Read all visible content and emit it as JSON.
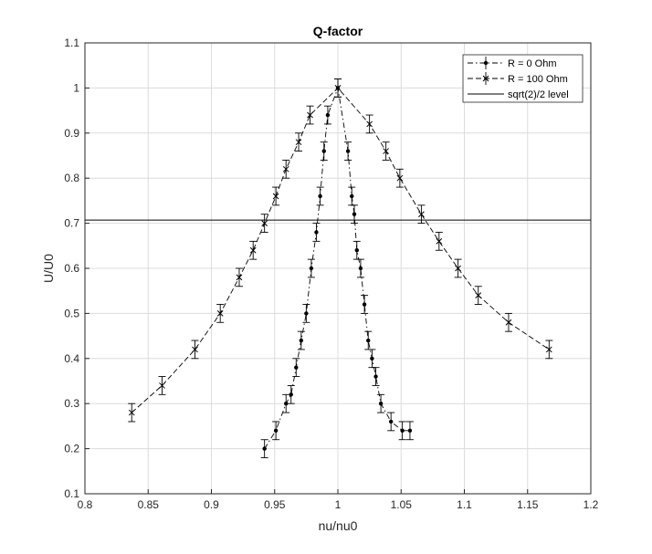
{
  "chart_data": {
    "type": "scatter",
    "title": "Q-factor",
    "xlabel": "nu/nu0",
    "ylabel": "U/U0",
    "xlim": [
      0.8,
      1.2
    ],
    "ylim": [
      0.1,
      1.1
    ],
    "xticks": [
      "0.8",
      "0.85",
      "0.9",
      "0.95",
      "1",
      "1.05",
      "1.1",
      "1.15",
      "1.2"
    ],
    "yticks": [
      "0.1",
      "0.2",
      "0.3",
      "0.4",
      "0.5",
      "0.6",
      "0.7",
      "0.8",
      "0.9",
      "1",
      "1.1"
    ],
    "grid": true,
    "legend_position": "top-right",
    "error": 0.02,
    "series": [
      {
        "name": "R = 0 Ohm",
        "marker": "dot",
        "line": "dash-dot",
        "color": "#000000",
        "x": [
          0.942,
          0.951,
          0.959,
          0.963,
          0.967,
          0.971,
          0.975,
          0.979,
          0.983,
          0.986,
          0.989,
          0.992,
          1.0,
          1.008,
          1.011,
          1.013,
          1.015,
          1.018,
          1.021,
          1.024,
          1.027,
          1.03,
          1.034,
          1.042,
          1.051,
          1.057
        ],
        "y": [
          0.2,
          0.24,
          0.3,
          0.32,
          0.38,
          0.44,
          0.5,
          0.6,
          0.68,
          0.76,
          0.86,
          0.94,
          1.0,
          0.86,
          0.76,
          0.72,
          0.64,
          0.6,
          0.52,
          0.44,
          0.4,
          0.36,
          0.3,
          0.26,
          0.24,
          0.24
        ]
      },
      {
        "name": "R = 100 Ohm",
        "marker": "x",
        "line": "dash",
        "color": "#000000",
        "x": [
          0.837,
          0.861,
          0.887,
          0.907,
          0.922,
          0.933,
          0.942,
          0.951,
          0.959,
          0.969,
          0.978,
          1.0,
          1.025,
          1.038,
          1.049,
          1.066,
          1.08,
          1.095,
          1.111,
          1.135,
          1.167
        ],
        "y": [
          0.28,
          0.34,
          0.42,
          0.5,
          0.58,
          0.64,
          0.7,
          0.76,
          0.82,
          0.88,
          0.94,
          1.0,
          0.92,
          0.86,
          0.8,
          0.72,
          0.66,
          0.6,
          0.54,
          0.48,
          0.42
        ]
      },
      {
        "name": "sqrt(2)/2 level",
        "marker": "none",
        "line": "solid",
        "color": "#000000",
        "y_level": 0.7071
      }
    ]
  }
}
